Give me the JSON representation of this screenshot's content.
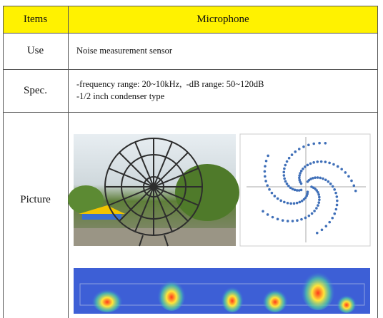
{
  "header": {
    "items": "Items",
    "title": "Microphone"
  },
  "rows": [
    {
      "label": "Use",
      "text": "Noise measurement sensor"
    },
    {
      "label": "Spec.",
      "lines": [
        "-frequency range: 20~10kHz,  -dB range: 50~120dB",
        "-1/2 inch condenser type"
      ]
    },
    {
      "label": "Picture"
    }
  ]
}
